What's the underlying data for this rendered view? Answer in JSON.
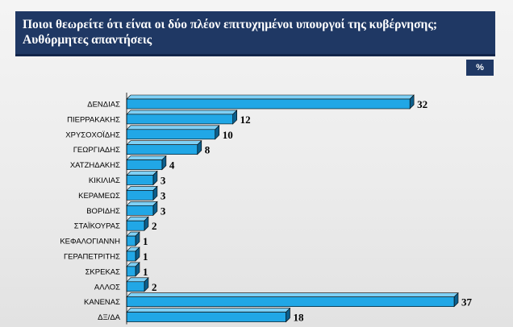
{
  "header": {
    "title_line1": "Ποιοι θεωρείτε ότι είναι οι δύο πλέον επιτυχημένοι υπουργοί της κυβέρνησης;",
    "title_line2": "Αυθόρμητες απαντήσεις",
    "unit": "%"
  },
  "colors": {
    "bar_face": "#21a7e6",
    "bar_side": "#0d5f8c",
    "bar_top": "#7fd0f5",
    "header_bg": "#1f3864"
  },
  "chart_data": {
    "type": "bar",
    "orientation": "horizontal",
    "style": "3d",
    "title": "Ποιοι θεωρείτε ότι είναι οι δύο πλέον επιτυχημένοι υπουργοί της κυβέρνησης; Αυθόρμητες απαντήσεις",
    "unit": "%",
    "categories": [
      "ΔΕΝΔΙΑΣ",
      "ΠΙΕΡΡΑΚΑΚΗΣ",
      "ΧΡΥΣΟΧΟΪΔΗΣ",
      "ΓΕΩΡΓΙΑΔΗΣ",
      "ΧΑΤΖΗΔΑΚΗΣ",
      "ΚΙΚΙΛΙΑΣ",
      "ΚΕΡΑΜΕΩΣ",
      "ΒΟΡΙΔΗΣ",
      "ΣΤΑΪΚΟΥΡΑΣ",
      "ΚΕΦΑΛΟΓΙΑΝΝΗ",
      "ΓΕΡΑΠΕΤΡΙΤΗΣ",
      "ΣΚΡΕΚΑΣ",
      "ΑΛΛΟΣ",
      "ΚΑΝΕΝΑΣ",
      "ΔΞ/ΔΑ"
    ],
    "values": [
      32,
      12,
      10,
      8,
      4,
      3,
      3,
      3,
      2,
      1,
      1,
      1,
      2,
      37,
      18
    ],
    "xlim": [
      0,
      37
    ],
    "grid": false,
    "legend": "none"
  }
}
